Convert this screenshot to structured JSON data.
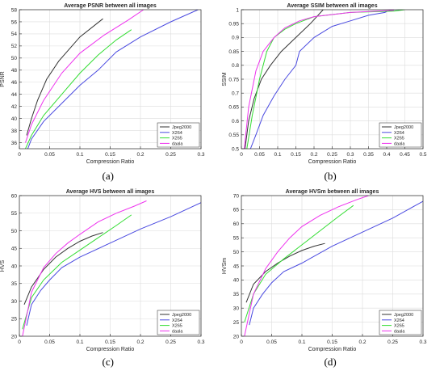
{
  "chart_data": [
    {
      "panel_label": "(a)",
      "type": "line",
      "title": "Average PSNR between all images",
      "xlabel": "Compression Ratio",
      "ylabel": "PSNR",
      "xlim": [
        0,
        0.3
      ],
      "ylim": [
        35,
        58
      ],
      "xticks": [
        0,
        0.05,
        0.1,
        0.15,
        0.2,
        0.25,
        0.3
      ],
      "xtick_labels": [
        "0",
        "0.05",
        "0.1",
        "0.15",
        "0.2",
        "0.25",
        "0.3"
      ],
      "yticks": [
        36,
        38,
        40,
        42,
        44,
        46,
        48,
        50,
        52,
        54,
        56,
        58
      ],
      "ytick_labels": [
        "36",
        "38",
        "40",
        "42",
        "44",
        "46",
        "48",
        "50",
        "52",
        "54",
        "56",
        "58"
      ],
      "grid": true,
      "legend": "bottom-right",
      "series": [
        {
          "name": "Jpeg2000",
          "color": "#333333",
          "x": [
            0.012,
            0.02,
            0.03,
            0.045,
            0.065,
            0.1,
            0.138
          ],
          "y": [
            37.2,
            40.0,
            43.0,
            46.5,
            49.5,
            53.5,
            56.5
          ]
        },
        {
          "name": "X264",
          "color": "#4a4ae0",
          "x": [
            0.012,
            0.02,
            0.04,
            0.07,
            0.1,
            0.13,
            0.16,
            0.2,
            0.25,
            0.295
          ],
          "y": [
            34.5,
            36.6,
            39.5,
            42.5,
            45.5,
            48.0,
            51.0,
            53.5,
            56.0,
            58.0
          ]
        },
        {
          "name": "X265",
          "color": "#33dd33",
          "x": [
            0.01,
            0.02,
            0.04,
            0.07,
            0.1,
            0.13,
            0.16,
            0.185
          ],
          "y": [
            35.0,
            37.2,
            40.5,
            44.0,
            47.5,
            50.5,
            53.0,
            54.7
          ]
        },
        {
          "name": "daala",
          "color": "#ee33ee",
          "x": [
            0.01,
            0.02,
            0.04,
            0.07,
            0.1,
            0.14,
            0.18,
            0.205
          ],
          "y": [
            36.0,
            39.0,
            43.0,
            47.5,
            50.8,
            53.8,
            56.3,
            58.0
          ]
        }
      ]
    },
    {
      "panel_label": "(b)",
      "type": "line",
      "title": "Average SSIM between all images",
      "xlabel": "Compression Ratio",
      "ylabel": "SSIM",
      "xlim": [
        0,
        0.5
      ],
      "ylim": [
        0.5,
        1
      ],
      "xticks": [
        0,
        0.05,
        0.1,
        0.15,
        0.2,
        0.25,
        0.3,
        0.35,
        0.4,
        0.45,
        0.5
      ],
      "xtick_labels": [
        "0",
        "0.05",
        "0.1",
        "0.15",
        "0.2",
        "0.25",
        "0.3",
        "0.35",
        "0.4",
        "0.45",
        "0.5"
      ],
      "yticks": [
        0.5,
        0.55,
        0.6,
        0.65,
        0.7,
        0.75,
        0.8,
        0.85,
        0.9,
        0.95,
        1
      ],
      "ytick_labels": [
        "0.5",
        "0.55",
        "0.6",
        "0.65",
        "0.7",
        "0.75",
        "0.8",
        "0.85",
        "0.9",
        "0.95",
        "1"
      ],
      "grid": true,
      "legend": "bottom-right",
      "series": [
        {
          "name": "Jpeg2000",
          "color": "#333333",
          "x": [
            0.01,
            0.02,
            0.035,
            0.055,
            0.08,
            0.11,
            0.15,
            0.19,
            0.225
          ],
          "y": [
            0.5,
            0.6,
            0.68,
            0.75,
            0.8,
            0.85,
            0.9,
            0.95,
            1.0
          ]
        },
        {
          "name": "X264",
          "color": "#4a4ae0",
          "x": [
            0.025,
            0.04,
            0.06,
            0.09,
            0.12,
            0.15,
            0.16,
            0.2,
            0.25,
            0.3,
            0.35,
            0.395,
            0.41,
            0.45
          ],
          "y": [
            0.5,
            0.55,
            0.62,
            0.69,
            0.75,
            0.8,
            0.85,
            0.9,
            0.94,
            0.96,
            0.98,
            0.99,
            1.0,
            1.0
          ]
        },
        {
          "name": "X265",
          "color": "#33dd33",
          "x": [
            0.015,
            0.03,
            0.05,
            0.07,
            0.09,
            0.12,
            0.15,
            0.2,
            0.3,
            0.42,
            0.45
          ],
          "y": [
            0.5,
            0.62,
            0.75,
            0.85,
            0.9,
            0.93,
            0.95,
            0.975,
            0.99,
            0.995,
            1.0
          ]
        },
        {
          "name": "daala",
          "color": "#ee33ee",
          "x": [
            0.008,
            0.02,
            0.04,
            0.06,
            0.09,
            0.12,
            0.16,
            0.2,
            0.3,
            0.42
          ],
          "y": [
            0.5,
            0.65,
            0.78,
            0.85,
            0.9,
            0.935,
            0.96,
            0.975,
            0.99,
            0.998
          ]
        }
      ]
    },
    {
      "panel_label": "(c)",
      "type": "line",
      "title": "Average HVS between all images",
      "xlabel": "Compression Ratio",
      "ylabel": "HVS",
      "xlim": [
        0,
        0.3
      ],
      "ylim": [
        20,
        60
      ],
      "xticks": [
        0,
        0.05,
        0.1,
        0.15,
        0.2,
        0.25,
        0.3
      ],
      "xtick_labels": [
        "0",
        "0.05",
        "0.1",
        "0.15",
        "0.2",
        "0.25",
        "0.3"
      ],
      "yticks": [
        20,
        25,
        30,
        35,
        40,
        45,
        50,
        55,
        60
      ],
      "ytick_labels": [
        "20",
        "25",
        "30",
        "35",
        "40",
        "45",
        "50",
        "55",
        "60"
      ],
      "grid": true,
      "legend": "bottom-right",
      "series": [
        {
          "name": "Jpeg2000",
          "color": "#333333",
          "x": [
            0.008,
            0.02,
            0.04,
            0.06,
            0.08,
            0.1,
            0.12,
            0.138
          ],
          "y": [
            29.0,
            34.0,
            39.0,
            42.5,
            45.0,
            47.0,
            48.5,
            49.5
          ]
        },
        {
          "name": "X264",
          "color": "#4a4ae0",
          "x": [
            0.012,
            0.02,
            0.035,
            0.05,
            0.07,
            0.1,
            0.15,
            0.2,
            0.25,
            0.3
          ],
          "y": [
            23.0,
            29.0,
            33.0,
            36.0,
            39.5,
            42.5,
            46.5,
            50.5,
            54.0,
            58.0
          ]
        },
        {
          "name": "X265",
          "color": "#33dd33",
          "x": [
            0.005,
            0.02,
            0.04,
            0.07,
            0.1,
            0.13,
            0.16,
            0.185
          ],
          "y": [
            22.0,
            31.0,
            36.0,
            41.0,
            44.5,
            48.0,
            51.5,
            54.5
          ]
        },
        {
          "name": "daala",
          "color": "#ee33ee",
          "x": [
            0.005,
            0.02,
            0.04,
            0.06,
            0.08,
            0.1,
            0.13,
            0.16,
            0.19,
            0.21
          ],
          "y": [
            20.0,
            32.5,
            39.5,
            43.5,
            46.5,
            49.0,
            52.5,
            55.0,
            57.0,
            58.5
          ]
        }
      ]
    },
    {
      "panel_label": "(d)",
      "type": "line",
      "title": "Average HVSm between all images",
      "xlabel": "Compression Ratio",
      "ylabel": "HVSm",
      "xlim": [
        0,
        0.3
      ],
      "ylim": [
        20,
        70
      ],
      "xticks": [
        0,
        0.05,
        0.1,
        0.15,
        0.2,
        0.25,
        0.3
      ],
      "xtick_labels": [
        "0",
        "0.05",
        "0.1",
        "0.15",
        "0.2",
        "0.25",
        "0.3"
      ],
      "yticks": [
        20,
        25,
        30,
        35,
        40,
        45,
        50,
        55,
        60,
        65,
        70
      ],
      "ytick_labels": [
        "20",
        "25",
        "30",
        "35",
        "40",
        "45",
        "50",
        "55",
        "60",
        "65",
        "70"
      ],
      "grid": true,
      "legend": "bottom-right",
      "series": [
        {
          "name": "Jpeg2000",
          "color": "#333333",
          "x": [
            0.008,
            0.02,
            0.04,
            0.06,
            0.08,
            0.1,
            0.12,
            0.138
          ],
          "y": [
            32.0,
            38.5,
            43.0,
            46.0,
            48.5,
            50.5,
            52.0,
            53.0
          ]
        },
        {
          "name": "X264",
          "color": "#4a4ae0",
          "x": [
            0.013,
            0.02,
            0.035,
            0.05,
            0.07,
            0.1,
            0.15,
            0.2,
            0.25,
            0.3
          ],
          "y": [
            24.0,
            30.0,
            35.0,
            39.0,
            43.0,
            46.0,
            52.0,
            57.0,
            62.0,
            68.0
          ]
        },
        {
          "name": "X265",
          "color": "#33dd33",
          "x": [
            0.005,
            0.02,
            0.04,
            0.07,
            0.1,
            0.13,
            0.16,
            0.185
          ],
          "y": [
            25.0,
            35.0,
            42.0,
            47.5,
            52.5,
            57.5,
            62.5,
            66.5
          ]
        },
        {
          "name": "daala",
          "color": "#ee33ee",
          "x": [
            0.005,
            0.02,
            0.04,
            0.06,
            0.08,
            0.1,
            0.13,
            0.16,
            0.19,
            0.21
          ],
          "y": [
            20.0,
            35.0,
            44.0,
            50.0,
            55.0,
            59.0,
            63.0,
            66.0,
            68.5,
            70.0
          ]
        }
      ]
    }
  ]
}
